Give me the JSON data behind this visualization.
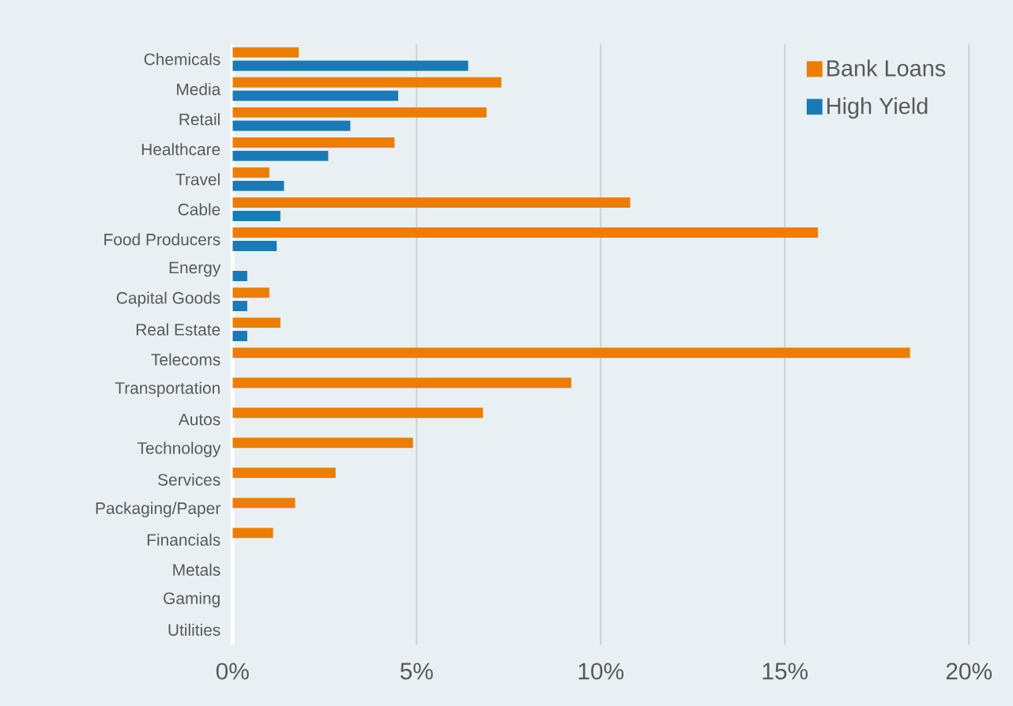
{
  "chart_data": {
    "type": "bar",
    "orientation": "horizontal",
    "categories": [
      "Chemicals",
      "Media",
      "Retail",
      "Healthcare",
      "Travel",
      "Cable",
      "Food Producers",
      "Energy",
      "Capital Goods",
      "Real Estate",
      "Telecoms",
      "Transportation",
      "Autos",
      "Technology",
      "Services",
      "Packaging/Paper",
      "Financials",
      "Metals",
      "Gaming",
      "Utilities"
    ],
    "series": [
      {
        "name": "Bank Loans",
        "color": "#ed7d00",
        "values": [
          1.8,
          7.3,
          6.9,
          4.4,
          1.0,
          10.8,
          15.9,
          0,
          1.0,
          1.3,
          18.4,
          9.2,
          6.8,
          4.9,
          2.8,
          1.7,
          1.1,
          0,
          0,
          0
        ]
      },
      {
        "name": "High Yield",
        "color": "#1a7ab8",
        "values": [
          6.4,
          4.5,
          3.2,
          2.6,
          1.4,
          1.3,
          1.2,
          0.4,
          0.4,
          0.4,
          0,
          0,
          0,
          0,
          0,
          0,
          0,
          0,
          0,
          0
        ]
      }
    ],
    "xlim": [
      0,
      20
    ],
    "xticks": [
      {
        "value": 0,
        "label": "0%"
      },
      {
        "value": 5,
        "label": "5%"
      },
      {
        "value": 10,
        "label": "10%"
      },
      {
        "value": 15,
        "label": "15%"
      },
      {
        "value": 20,
        "label": "20%"
      }
    ],
    "grid": "x",
    "legend": "top right"
  }
}
